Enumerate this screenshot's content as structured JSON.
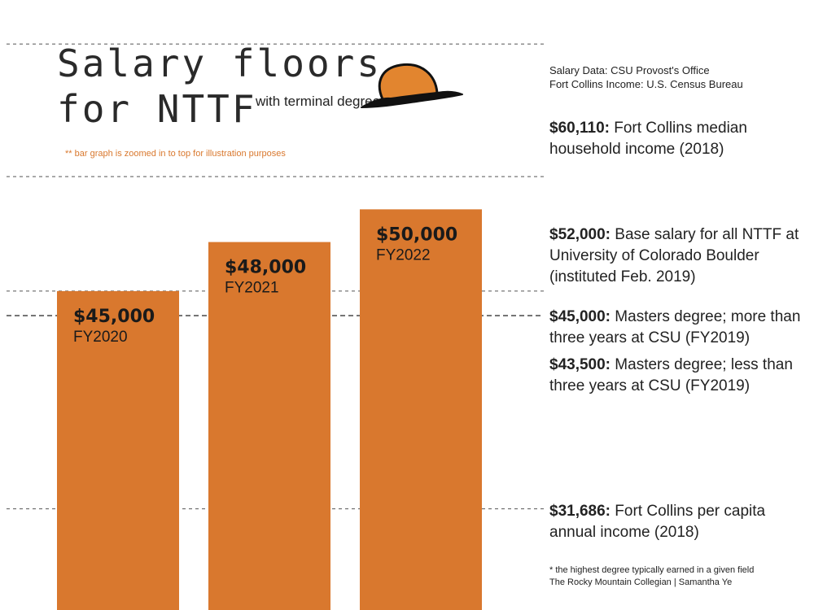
{
  "title": {
    "line1": "Salary floors",
    "line2": "for NTTF"
  },
  "subtitle": "with terminal degrees *",
  "zoom_note": "** bar graph is zoomed in to top for illustration purposes",
  "sources": {
    "salary": "Salary Data: CSU Provost's Office",
    "income": "Fort Collins Income: U.S. Census Bureau"
  },
  "footer": {
    "footnote": "* the highest degree typically earned in a given field",
    "credit": "The Rocky Mountain Collegian | Samantha Ye"
  },
  "colors": {
    "bar": "#d9782e",
    "text": "#1a1a1a",
    "grid": "#555555",
    "hat": "#e2852f"
  },
  "icons": {
    "hat": "hat-icon"
  },
  "chart_data": {
    "type": "bar",
    "categories": [
      "FY2020",
      "FY2021",
      "FY2022"
    ],
    "values": [
      45000,
      48000,
      50000
    ],
    "value_labels": [
      "$45,000",
      "$48,000",
      "$50,000"
    ],
    "title": "Salary floors for NTTF",
    "subtitle": "with terminal degrees *",
    "ylim": [
      25500,
      62800
    ],
    "grid": false,
    "reference_lines": [
      {
        "value": 60110,
        "label_value": "$60,110:",
        "label_text": "Fort Collins median household income (2018)"
      },
      {
        "value": 52000,
        "label_value": "$52,000:",
        "label_text": "Base salary for all NTTF at University of Colorado Boulder (instituted Feb. 2019)"
      },
      {
        "value": 45000,
        "label_value": "$45,000:",
        "label_text": "Masters degree; more than three years at CSU (FY2019)"
      },
      {
        "value": 43500,
        "label_value": "$43,500:",
        "label_text": "Masters degree; less than three years at CSU (FY2019)"
      },
      {
        "value": 31686,
        "label_value": "$31,686:",
        "label_text": "Fort Collins per capita annual income (2018)"
      }
    ]
  }
}
